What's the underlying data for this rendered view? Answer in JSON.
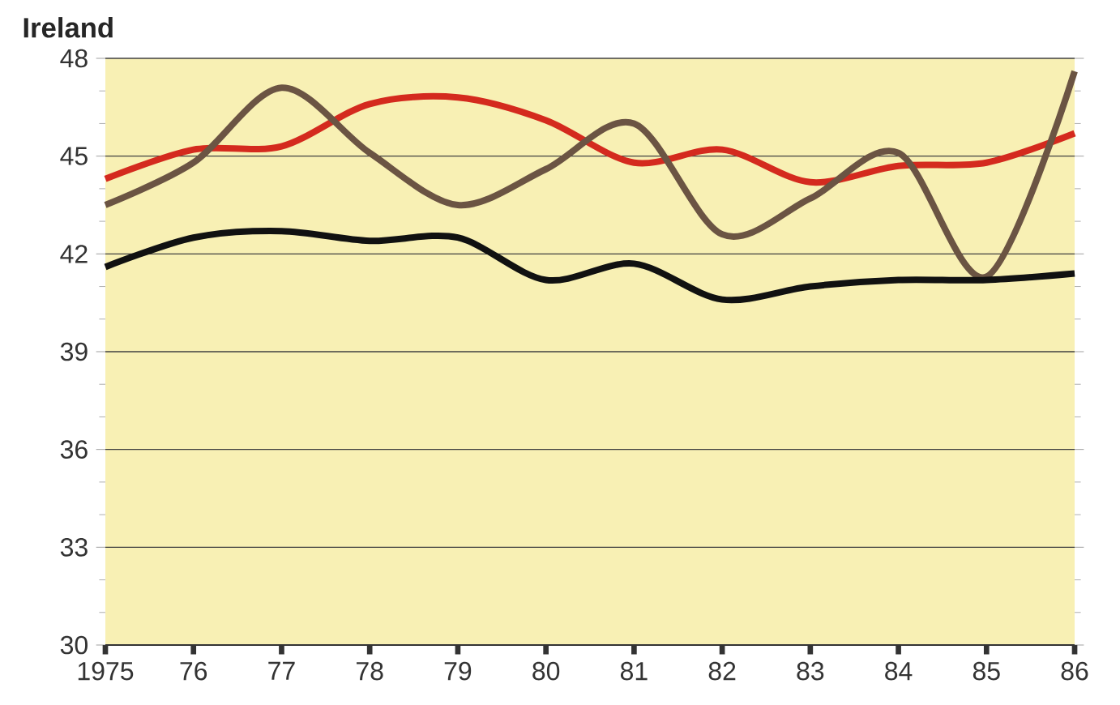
{
  "chart_data": {
    "type": "line",
    "title": "Ireland",
    "x": [
      1975,
      1976,
      1977,
      1978,
      1979,
      1980,
      1981,
      1982,
      1983,
      1984,
      1985,
      1986
    ],
    "series": [
      {
        "color": "#d42a1e",
        "values": [
          44.3,
          45.2,
          45.3,
          46.6,
          46.8,
          46.1,
          44.8,
          45.2,
          44.2,
          44.7,
          44.8,
          45.7
        ]
      },
      {
        "color": "#6b5443",
        "values": [
          43.5,
          44.8,
          47.1,
          45.1,
          43.5,
          44.6,
          46.0,
          42.6,
          43.7,
          45.1,
          41.3,
          47.6
        ]
      },
      {
        "color": "#111111",
        "values": [
          41.6,
          42.5,
          42.7,
          42.4,
          42.5,
          41.2,
          41.7,
          40.6,
          41.0,
          41.2,
          41.2,
          41.4
        ]
      }
    ],
    "xlim": [
      1975,
      1986
    ],
    "xticks": [
      1975,
      {
        "value": 1976,
        "label": "76"
      },
      {
        "value": 1977,
        "label": "77"
      },
      {
        "value": 1978,
        "label": "78"
      },
      {
        "value": 1979,
        "label": "79"
      },
      {
        "value": 1980,
        "label": "80"
      },
      {
        "value": 1981,
        "label": "81"
      },
      {
        "value": 1982,
        "label": "82"
      },
      {
        "value": 1983,
        "label": "83"
      },
      {
        "value": 1984,
        "label": "84"
      },
      {
        "value": 1985,
        "label": "85"
      },
      {
        "value": 1986,
        "label": "86"
      }
    ],
    "ylim": [
      30,
      48
    ],
    "yticks": [
      30,
      33,
      36,
      39,
      42,
      45,
      48
    ],
    "grid": "y",
    "marker": "none",
    "line_style": "solid"
  }
}
